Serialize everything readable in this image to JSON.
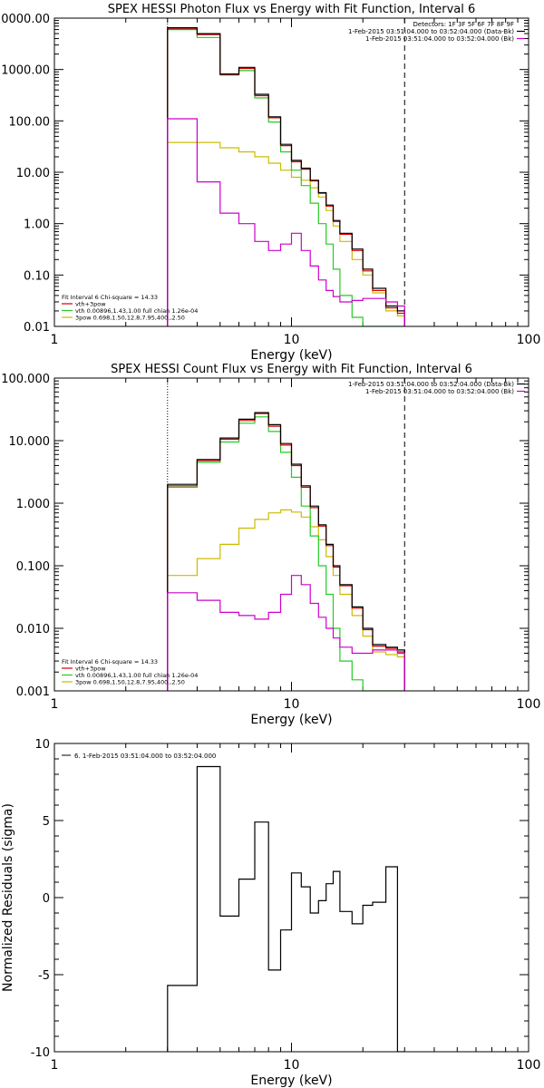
{
  "chart_data": [
    {
      "type": "line",
      "title": "SPEX HESSI Photon Flux vs Energy with Fit Function, Interval 6",
      "xlabel": "Energy (keV)",
      "ylabel": "",
      "xscale": "log",
      "yscale": "log",
      "xlim": [
        1,
        100
      ],
      "ylim": [
        0.01,
        10000
      ],
      "xticks": [
        1,
        10,
        100
      ],
      "xticklabels": [
        "1",
        "10",
        "100"
      ],
      "yticks": [
        0.01,
        0.1,
        1,
        10,
        100,
        1000,
        10000
      ],
      "yticklabels": [
        "0.01",
        "0.10",
        "1.00",
        "10.00",
        "100.00",
        "1000.00",
        "10000.00"
      ],
      "vlines": [
        {
          "x": 3,
          "style": "dotted"
        },
        {
          "x": 30,
          "style": "dashed"
        }
      ],
      "legend_top": [
        "Detectors: 1F 3F 5F 6F 7F 8F 9F",
        "1-Feb-2015 03:51:04.000 to 03:52:04.000 (Data-Bk)",
        "1-Feb-2015 03:51:04.000 to 03:52:04.000 (Bk)"
      ],
      "legend_bottom": [
        "Fit Interval  6    Chi-square = 14.33",
        "vth+3pow",
        "vth 0.00896,1.43,1.00  full chian 1.26e-04",
        "3pow 0.698,1.50,12.8,7.95,400.,2.50"
      ],
      "bin_edges": [
        3,
        4,
        5,
        6,
        7,
        8,
        9,
        10,
        11,
        12,
        13,
        14,
        15,
        16,
        18,
        20,
        22,
        25,
        28,
        30
      ],
      "series": [
        {
          "name": "1-Feb-2015 03:51:04.000 to 03:52:04.000 (Data-Bk)",
          "color": "#000000",
          "values": [
            6500,
            5000,
            820,
            1100,
            330,
            120,
            35,
            17,
            12,
            7,
            4,
            2.3,
            1.15,
            0.65,
            0.32,
            0.13,
            0.055,
            0.025,
            0.02
          ]
        },
        {
          "name": "vth+3pow",
          "color": "#d40000",
          "values": [
            6200,
            4800,
            800,
            1050,
            310,
            115,
            33,
            16,
            11.5,
            6.8,
            3.9,
            2.2,
            1.1,
            0.62,
            0.3,
            0.12,
            0.05,
            0.023,
            0.018
          ]
        },
        {
          "name": "vth 0.00896,1.43,1.00  full chian 1.26e-04",
          "color": "#22cc22",
          "values": [
            6000,
            4200,
            780,
            950,
            280,
            95,
            25,
            11,
            5.5,
            2.5,
            1.0,
            0.4,
            0.13,
            0.04,
            0.015,
            0.01,
            0.01,
            0.01,
            0.01
          ]
        },
        {
          "name": "3pow 0.698,1.50,12.8,7.95,400.,2.50",
          "color": "#ccbb00",
          "values": [
            38,
            38,
            30,
            25,
            20,
            15,
            11,
            8,
            7,
            5,
            3.3,
            1.8,
            0.9,
            0.45,
            0.2,
            0.1,
            0.045,
            0.02,
            0.016
          ]
        },
        {
          "name": "1-Feb-2015 03:51:04.000 to 03:52:04.000 (Bk)",
          "color": "#cc00cc",
          "values": [
            110,
            6.5,
            1.6,
            1.0,
            0.45,
            0.3,
            0.4,
            0.65,
            0.3,
            0.15,
            0.08,
            0.05,
            0.038,
            0.03,
            0.032,
            0.035,
            0.035,
            0.03,
            0.025
          ]
        }
      ]
    },
    {
      "type": "line",
      "title": "SPEX HESSI Count Flux vs Energy with Fit Function, Interval 6",
      "xlabel": "Energy (keV)",
      "ylabel": "",
      "xscale": "log",
      "yscale": "log",
      "xlim": [
        1,
        100
      ],
      "ylim": [
        0.001,
        100
      ],
      "xticks": [
        1,
        10,
        100
      ],
      "xticklabels": [
        "1",
        "10",
        "100"
      ],
      "yticks": [
        0.001,
        0.01,
        0.1,
        1,
        10,
        100
      ],
      "yticklabels": [
        "0.001",
        "0.010",
        "0.100",
        "1.000",
        "10.000",
        "100.000"
      ],
      "vlines": [
        {
          "x": 3,
          "style": "dotted"
        },
        {
          "x": 30,
          "style": "dashed"
        }
      ],
      "legend_top": [
        "1-Feb-2015 03:51:04.000 to 03:52:04.000 (Data-Bk)",
        "1-Feb-2015 03:51:04.000 to 03:52:04.000 (Bk)"
      ],
      "legend_bottom": [
        "Fit Interval  6    Chi-square = 14.33",
        "vth+3pow",
        "vth 0.00896,1.43,1.00  full chian 1.26e-04",
        "3pow 0.698,1.50,12.8,7.95,400.,2.50"
      ],
      "bin_edges": [
        3,
        4,
        5,
        6,
        7,
        8,
        9,
        10,
        11,
        12,
        13,
        14,
        15,
        16,
        18,
        20,
        22,
        25,
        28,
        30
      ],
      "series": [
        {
          "name": "1-Feb-2015 03:51:04.000 to 03:52:04.000 (Data-Bk)",
          "color": "#000000",
          "values": [
            2.0,
            5.0,
            11,
            22,
            28,
            18,
            9,
            4.2,
            1.9,
            0.9,
            0.45,
            0.22,
            0.1,
            0.05,
            0.022,
            0.01,
            0.0055,
            0.005,
            0.0045
          ]
        },
        {
          "name": "vth+3pow",
          "color": "#d40000",
          "values": [
            1.9,
            4.8,
            10.5,
            21,
            27,
            17,
            8.5,
            4.0,
            1.8,
            0.85,
            0.43,
            0.21,
            0.095,
            0.048,
            0.021,
            0.0095,
            0.0052,
            0.0048,
            0.0042
          ]
        },
        {
          "name": "vth 0.00896,1.43,1.00  full chian 1.26e-04",
          "color": "#22cc22",
          "values": [
            1.8,
            4.5,
            9.5,
            19,
            24,
            14,
            6.5,
            2.6,
            0.9,
            0.3,
            0.1,
            0.035,
            0.01,
            0.003,
            0.0015,
            0.001,
            0.001,
            0.001,
            0.001
          ]
        },
        {
          "name": "3pow 0.698,1.50,12.8,7.95,400.,2.50",
          "color": "#ccbb00",
          "values": [
            0.07,
            0.13,
            0.22,
            0.4,
            0.55,
            0.7,
            0.78,
            0.72,
            0.6,
            0.42,
            0.26,
            0.14,
            0.07,
            0.035,
            0.016,
            0.0075,
            0.0042,
            0.0038,
            0.0035
          ]
        },
        {
          "name": "1-Feb-2015 03:51:04.000 to 03:52:04.000 (Bk)",
          "color": "#cc00cc",
          "values": [
            0.037,
            0.028,
            0.018,
            0.016,
            0.014,
            0.018,
            0.035,
            0.07,
            0.05,
            0.025,
            0.015,
            0.01,
            0.007,
            0.005,
            0.004,
            0.004,
            0.0045,
            0.0045,
            0.004
          ]
        }
      ]
    },
    {
      "type": "line",
      "title": "",
      "xlabel": "Energy (keV)",
      "ylabel": "Normalized Residuals (sigma)",
      "xscale": "log",
      "yscale": "linear",
      "xlim": [
        1,
        100
      ],
      "ylim": [
        -10,
        10
      ],
      "xticks": [
        1,
        10,
        100
      ],
      "xticklabels": [
        "1",
        "10",
        "100"
      ],
      "yticks": [
        -10,
        -5,
        0,
        5,
        10
      ],
      "yticklabels": [
        "-10",
        "-5",
        "0",
        "5",
        "10"
      ],
      "legend_top": [
        "6.  1-Feb-2015 03:51:04.000 to 03:52:04.000"
      ],
      "bin_edges": [
        3,
        4,
        5,
        6,
        7,
        8,
        9,
        10,
        11,
        12,
        13,
        14,
        15,
        16,
        18,
        20,
        22,
        25,
        28,
        30
      ],
      "series": [
        {
          "name": "6.  1-Feb-2015 03:51:04.000 to 03:52:04.000",
          "color": "#000000",
          "values": [
            -5.7,
            8.5,
            -1.2,
            1.2,
            4.9,
            -4.7,
            -2.1,
            1.6,
            0.7,
            -1.0,
            -0.2,
            0.9,
            1.7,
            -0.9,
            -1.7,
            -0.5,
            -0.3,
            2.0,
            -10
          ]
        }
      ]
    }
  ]
}
